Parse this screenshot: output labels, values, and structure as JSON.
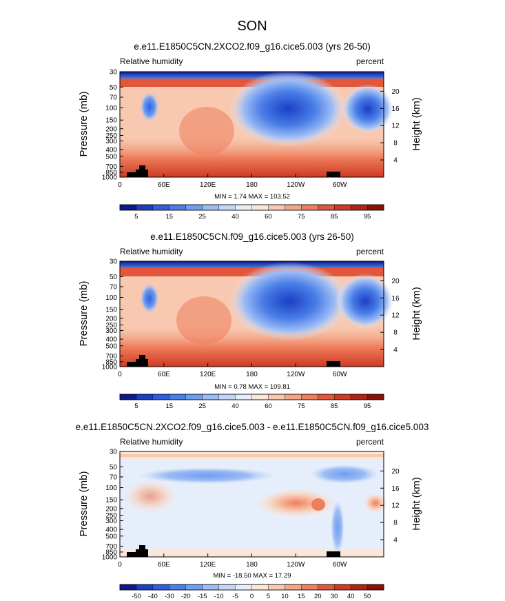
{
  "figure_title": "SON",
  "chart_data": [
    {
      "type": "heatmap",
      "title": "e.e11.E1850C5CN.2XCO2.f09_g16.cice5.003 (yrs 26-50)",
      "left_label": "Relative humidity",
      "right_label": "percent",
      "ylabel": "Pressure (mb)",
      "y2label": "Height (km)",
      "x_ticks": [
        "0",
        "60E",
        "120E",
        "180",
        "120W",
        "60W"
      ],
      "x_tick_values": [
        0,
        60,
        120,
        180,
        240,
        300
      ],
      "xlim": [
        0,
        360
      ],
      "y_ticks": [
        "30",
        "50",
        "70",
        "100",
        "150",
        "200",
        "250",
        "300",
        "400",
        "500",
        "700",
        "850",
        "1000"
      ],
      "y_tick_values": [
        30,
        50,
        70,
        100,
        150,
        200,
        250,
        300,
        400,
        500,
        700,
        850,
        1000
      ],
      "ylim": [
        30,
        1000
      ],
      "height_ticks": [
        "4",
        "8",
        "12",
        "16",
        "20"
      ],
      "height_tick_values": [
        4,
        8,
        12,
        16,
        20
      ],
      "stats": "MIN =   1.74  MAX = 103.52",
      "colorbar_labels": [
        "5",
        "15",
        "25",
        "40",
        "60",
        "75",
        "85",
        "95"
      ],
      "colorbar_colors": [
        "#0c1a8a",
        "#1a3fc4",
        "#2f5fe0",
        "#4a7ee8",
        "#6e9ef0",
        "#9cbcf4",
        "#c4d6f8",
        "#e6eefb",
        "#fbe6da",
        "#f8c8b0",
        "#f4a584",
        "#ee7e5c",
        "#e2563c",
        "#cf3a24",
        "#b22412",
        "#8c1006"
      ]
    },
    {
      "type": "heatmap",
      "title": "e.e11.E1850C5CN.f09_g16.cice5.003 (yrs 26-50)",
      "left_label": "Relative humidity",
      "right_label": "percent",
      "ylabel": "Pressure (mb)",
      "y2label": "Height (km)",
      "x_ticks": [
        "0",
        "60E",
        "120E",
        "180",
        "120W",
        "60W"
      ],
      "x_tick_values": [
        0,
        60,
        120,
        180,
        240,
        300
      ],
      "xlim": [
        0,
        360
      ],
      "y_ticks": [
        "30",
        "50",
        "70",
        "100",
        "150",
        "200",
        "250",
        "300",
        "400",
        "500",
        "700",
        "850",
        "1000"
      ],
      "y_tick_values": [
        30,
        50,
        70,
        100,
        150,
        200,
        250,
        300,
        400,
        500,
        700,
        850,
        1000
      ],
      "ylim": [
        30,
        1000
      ],
      "height_ticks": [
        "4",
        "8",
        "12",
        "16",
        "20"
      ],
      "height_tick_values": [
        4,
        8,
        12,
        16,
        20
      ],
      "stats": "MIN =   0.78  MAX = 109.81",
      "colorbar_labels": [
        "5",
        "15",
        "25",
        "40",
        "60",
        "75",
        "85",
        "95"
      ],
      "colorbar_colors": [
        "#0c1a8a",
        "#1a3fc4",
        "#2f5fe0",
        "#4a7ee8",
        "#6e9ef0",
        "#9cbcf4",
        "#c4d6f8",
        "#e6eefb",
        "#fbe6da",
        "#f8c8b0",
        "#f4a584",
        "#ee7e5c",
        "#e2563c",
        "#cf3a24",
        "#b22412",
        "#8c1006"
      ]
    },
    {
      "type": "heatmap",
      "title": "e.e11.E1850C5CN.2XCO2.f09_g16.cice5.003 - e.e11.E1850C5CN.f09_g16.cice5.003",
      "left_label": "Relative humidity",
      "right_label": "percent",
      "ylabel": "Pressure (mb)",
      "y2label": "Height (km)",
      "x_ticks": [
        "0",
        "60E",
        "120E",
        "180",
        "120W",
        "60W"
      ],
      "x_tick_values": [
        0,
        60,
        120,
        180,
        240,
        300
      ],
      "xlim": [
        0,
        360
      ],
      "y_ticks": [
        "30",
        "50",
        "70",
        "100",
        "150",
        "200",
        "250",
        "300",
        "400",
        "500",
        "700",
        "850",
        "1000"
      ],
      "y_tick_values": [
        30,
        50,
        70,
        100,
        150,
        200,
        250,
        300,
        400,
        500,
        700,
        850,
        1000
      ],
      "ylim": [
        30,
        1000
      ],
      "height_ticks": [
        "4",
        "8",
        "12",
        "16",
        "20"
      ],
      "height_tick_values": [
        4,
        8,
        12,
        16,
        20
      ],
      "stats": "MIN = -18.50  MAX =  17.29",
      "colorbar_labels": [
        "-50",
        "-40",
        "-30",
        "-20",
        "-15",
        "-10",
        "-5",
        "0",
        "5",
        "10",
        "15",
        "20",
        "30",
        "40",
        "50"
      ],
      "colorbar_colors": [
        "#0c1a8a",
        "#1a3fc4",
        "#2f5fe0",
        "#4a7ee8",
        "#6e9ef0",
        "#9cbcf4",
        "#c4d6f8",
        "#e6eefb",
        "#fbe6da",
        "#f8c8b0",
        "#f4a584",
        "#ee7e5c",
        "#e2563c",
        "#cf3a24",
        "#b22412",
        "#8c1006"
      ]
    }
  ]
}
